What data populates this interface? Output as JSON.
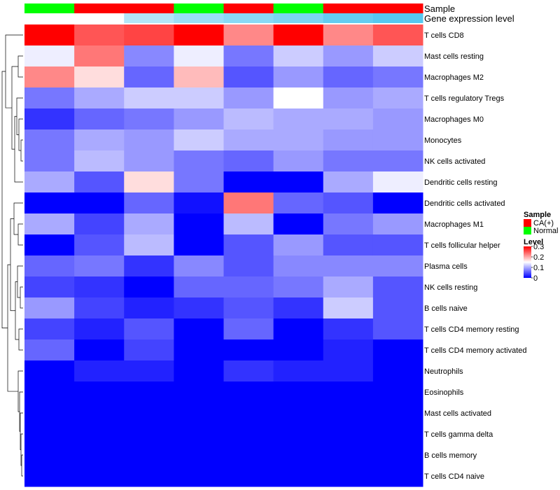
{
  "chart_data": {
    "type": "heatmap",
    "columns": 8,
    "rows": [
      "T cells CD8",
      "Mast cells resting",
      "Macrophages M2",
      "T cells regulatory  Tregs",
      "Macrophages M0",
      "Monocytes",
      "NK cells activated",
      "Dendritic cells resting",
      "Dendritic cells activated",
      "Macrophages M1",
      "T cells follicular helper",
      "Plasma cells",
      "NK cells resting",
      "B cells naive",
      "T cells CD4 memory resting",
      "T cells CD4 memory activated",
      "Neutrophils",
      "Eosinophils",
      "Mast cells activated",
      "T cells gamma delta",
      "B cells memory",
      "T cells CD4 naive"
    ],
    "values": [
      [
        0.3,
        0.25,
        0.26,
        0.3,
        0.22,
        0.3,
        0.22,
        0.25
      ],
      [
        0.14,
        0.23,
        0.08,
        0.14,
        0.07,
        0.12,
        0.09,
        0.12
      ],
      [
        0.22,
        0.17,
        0.06,
        0.19,
        0.05,
        0.09,
        0.06,
        0.07
      ],
      [
        0.07,
        0.1,
        0.12,
        0.12,
        0.09,
        0.15,
        0.09,
        0.1
      ],
      [
        0.03,
        0.06,
        0.07,
        0.09,
        0.11,
        0.1,
        0.1,
        0.09
      ],
      [
        0.07,
        0.1,
        0.09,
        0.12,
        0.1,
        0.1,
        0.09,
        0.09
      ],
      [
        0.07,
        0.11,
        0.09,
        0.07,
        0.06,
        0.09,
        0.07,
        0.07
      ],
      [
        0.1,
        0.05,
        0.17,
        0.07,
        0.0,
        0.0,
        0.1,
        0.14
      ],
      [
        0.0,
        0.0,
        0.06,
        0.01,
        0.23,
        0.06,
        0.05,
        0.0
      ],
      [
        0.1,
        0.04,
        0.1,
        0.0,
        0.11,
        0.0,
        0.07,
        0.09
      ],
      [
        0.0,
        0.05,
        0.11,
        0.0,
        0.05,
        0.09,
        0.05,
        0.05
      ],
      [
        0.06,
        0.07,
        0.03,
        0.08,
        0.05,
        0.08,
        0.08,
        0.08
      ],
      [
        0.04,
        0.03,
        0.0,
        0.06,
        0.06,
        0.07,
        0.1,
        0.05
      ],
      [
        0.09,
        0.04,
        0.02,
        0.03,
        0.05,
        0.03,
        0.12,
        0.05
      ],
      [
        0.04,
        0.02,
        0.05,
        0.0,
        0.06,
        0.0,
        0.03,
        0.05
      ],
      [
        0.06,
        0.0,
        0.04,
        0.0,
        0.0,
        0.0,
        0.02,
        0.0
      ],
      [
        0.0,
        0.02,
        0.02,
        0.0,
        0.03,
        0.02,
        0.02,
        0.0
      ],
      [
        0.0,
        0.0,
        0.0,
        0.0,
        0.0,
        0.0,
        0.0,
        0.0
      ],
      [
        0.0,
        0.0,
        0.0,
        0.0,
        0.0,
        0.0,
        0.0,
        0.0
      ],
      [
        0.0,
        0.0,
        0.0,
        0.0,
        0.0,
        0.0,
        0.0,
        0.0
      ],
      [
        0.0,
        0.0,
        0.0,
        0.0,
        0.0,
        0.0,
        0.0,
        0.0
      ],
      [
        0.0,
        0.0,
        0.0,
        0.0,
        0.0,
        0.0,
        0.0,
        0.0
      ]
    ],
    "sample_annotation": [
      "Normal",
      "CA(+)",
      "CA(+)",
      "Normal",
      "CA(+)",
      "Normal",
      "CA(+)",
      "CA(+)"
    ],
    "gene_expression_annotation": [
      0.0,
      0.0,
      0.45,
      0.6,
      0.7,
      0.78,
      0.92,
      1.0
    ],
    "annotation_labels": {
      "sample": "Sample",
      "gene_expression": "Gene expression level"
    },
    "legend": {
      "sample_title": "Sample",
      "sample_entries": [
        {
          "label": "CA(+)",
          "color": "#ff0000"
        },
        {
          "label": "Normal",
          "color": "#00ff00"
        }
      ],
      "level_title": "Level",
      "level_ticks": [
        "0.3",
        "0.2",
        "0.1",
        "0"
      ],
      "level_tick_values": [
        0.3,
        0.2,
        0.1,
        0
      ],
      "placement": "right"
    },
    "color_scale": {
      "low": "#0000ff",
      "mid": "#ffffff",
      "high": "#ff0000",
      "min": 0,
      "max": 0.3
    },
    "gene_expression_colors": {
      "low": "#ffffff",
      "high": "#56c8f0"
    },
    "dendrogram": "left"
  }
}
